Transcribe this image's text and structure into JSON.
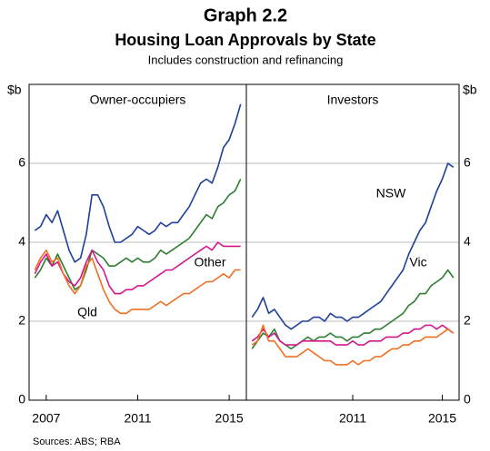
{
  "header": {
    "title": "Graph 2.2",
    "subtitle": "Housing Loan Approvals by State",
    "note": "Includes construction and refinancing"
  },
  "source": "Sources:   ABS; RBA",
  "chart_data": [
    {
      "type": "line",
      "title": "Owner-occupiers",
      "ylabel": "$b",
      "xlim": [
        2006.25,
        2015.75
      ],
      "xticks": [
        2007,
        2011,
        2015
      ],
      "ylim": [
        0,
        8
      ],
      "yticks": [
        0,
        2,
        4,
        6
      ],
      "grid": true,
      "x": [
        2006.5,
        2006.75,
        2007,
        2007.25,
        2007.5,
        2007.75,
        2008,
        2008.25,
        2008.5,
        2008.75,
        2009,
        2009.25,
        2009.5,
        2009.75,
        2010,
        2010.25,
        2010.5,
        2010.75,
        2011,
        2011.25,
        2011.5,
        2011.75,
        2012,
        2012.25,
        2012.5,
        2012.75,
        2013,
        2013.25,
        2013.5,
        2013.75,
        2014,
        2014.25,
        2014.5,
        2014.75,
        2015,
        2015.25,
        2015.5
      ],
      "series": [
        {
          "color": "#1f3f99",
          "values": [
            4.3,
            4.4,
            4.7,
            4.5,
            4.8,
            4.3,
            3.8,
            3.5,
            3.6,
            4.2,
            5.2,
            5.2,
            4.9,
            4.4,
            4.0,
            4.0,
            4.1,
            4.2,
            4.4,
            4.3,
            4.2,
            4.3,
            4.5,
            4.4,
            4.5,
            4.5,
            4.7,
            4.9,
            5.2,
            5.5,
            5.6,
            5.5,
            5.9,
            6.4,
            6.6,
            7.0,
            7.5
          ]
        },
        {
          "color": "#2e7d32",
          "values": [
            3.1,
            3.3,
            3.6,
            3.4,
            3.7,
            3.4,
            3.1,
            2.8,
            2.9,
            3.3,
            3.8,
            3.7,
            3.6,
            3.4,
            3.4,
            3.5,
            3.6,
            3.5,
            3.6,
            3.5,
            3.5,
            3.6,
            3.8,
            3.7,
            3.8,
            3.9,
            4.0,
            4.1,
            4.3,
            4.5,
            4.7,
            4.6,
            4.9,
            5.0,
            5.2,
            5.3,
            5.6
          ]
        },
        {
          "name": "Other",
          "color": "#d6178b",
          "values": [
            3.2,
            3.5,
            3.7,
            3.4,
            3.5,
            3.2,
            3.0,
            2.9,
            3.1,
            3.5,
            3.8,
            3.5,
            3.3,
            2.9,
            2.7,
            2.7,
            2.8,
            2.8,
            2.9,
            2.9,
            3.0,
            3.1,
            3.2,
            3.3,
            3.3,
            3.4,
            3.5,
            3.6,
            3.7,
            3.8,
            3.9,
            3.8,
            4.0,
            3.9,
            3.9,
            3.9,
            3.9
          ]
        },
        {
          "name": "Qld",
          "color": "#f07020",
          "values": [
            3.3,
            3.6,
            3.8,
            3.5,
            3.6,
            3.2,
            2.9,
            2.7,
            2.9,
            3.4,
            3.6,
            3.2,
            2.8,
            2.5,
            2.3,
            2.2,
            2.2,
            2.3,
            2.3,
            2.3,
            2.3,
            2.4,
            2.5,
            2.4,
            2.5,
            2.6,
            2.7,
            2.7,
            2.8,
            2.9,
            3.0,
            3.0,
            3.1,
            3.2,
            3.1,
            3.3,
            3.3
          ]
        }
      ]
    },
    {
      "type": "line",
      "title": "Investors",
      "ylabel": "$b",
      "xlim": [
        2006.25,
        2015.75
      ],
      "xticks": [
        2011,
        2015
      ],
      "ylim": [
        0,
        8
      ],
      "yticks": [
        0,
        2,
        4,
        6
      ],
      "grid": true,
      "x": [
        2006.5,
        2006.75,
        2007,
        2007.25,
        2007.5,
        2007.75,
        2008,
        2008.25,
        2008.5,
        2008.75,
        2009,
        2009.25,
        2009.5,
        2009.75,
        2010,
        2010.25,
        2010.5,
        2010.75,
        2011,
        2011.25,
        2011.5,
        2011.75,
        2012,
        2012.25,
        2012.5,
        2012.75,
        2013,
        2013.25,
        2013.5,
        2013.75,
        2014,
        2014.25,
        2014.5,
        2014.75,
        2015,
        2015.25,
        2015.5
      ],
      "series": [
        {
          "name": "NSW",
          "color": "#1f3f99",
          "values": [
            2.1,
            2.3,
            2.6,
            2.2,
            2.3,
            2.1,
            1.9,
            1.8,
            1.9,
            2.0,
            2.0,
            2.1,
            2.1,
            2.0,
            2.2,
            2.1,
            2.1,
            2.0,
            2.1,
            2.1,
            2.2,
            2.3,
            2.4,
            2.5,
            2.7,
            2.9,
            3.1,
            3.3,
            3.7,
            4.0,
            4.3,
            4.5,
            4.9,
            5.3,
            5.6,
            6.0,
            5.9
          ]
        },
        {
          "name": "Vic",
          "color": "#2e7d32",
          "values": [
            1.3,
            1.5,
            1.7,
            1.6,
            1.8,
            1.5,
            1.4,
            1.3,
            1.4,
            1.5,
            1.6,
            1.5,
            1.6,
            1.6,
            1.7,
            1.6,
            1.6,
            1.5,
            1.6,
            1.6,
            1.7,
            1.7,
            1.8,
            1.8,
            1.9,
            2.0,
            2.1,
            2.2,
            2.4,
            2.5,
            2.7,
            2.7,
            2.9,
            3.0,
            3.1,
            3.3,
            3.1
          ]
        },
        {
          "color": "#d6178b",
          "values": [
            1.5,
            1.6,
            1.8,
            1.6,
            1.7,
            1.5,
            1.4,
            1.4,
            1.4,
            1.5,
            1.5,
            1.5,
            1.5,
            1.5,
            1.5,
            1.4,
            1.4,
            1.4,
            1.5,
            1.4,
            1.4,
            1.5,
            1.5,
            1.5,
            1.6,
            1.6,
            1.6,
            1.7,
            1.7,
            1.8,
            1.8,
            1.9,
            1.9,
            1.8,
            1.9,
            1.8,
            1.7
          ]
        },
        {
          "color": "#f07020",
          "values": [
            1.4,
            1.5,
            1.9,
            1.5,
            1.5,
            1.3,
            1.1,
            1.1,
            1.1,
            1.2,
            1.3,
            1.2,
            1.1,
            1.0,
            1.0,
            0.9,
            0.9,
            0.9,
            1.0,
            0.9,
            1.0,
            1.0,
            1.1,
            1.1,
            1.2,
            1.3,
            1.3,
            1.4,
            1.4,
            1.5,
            1.5,
            1.6,
            1.6,
            1.6,
            1.7,
            1.8,
            1.7
          ]
        }
      ]
    }
  ]
}
